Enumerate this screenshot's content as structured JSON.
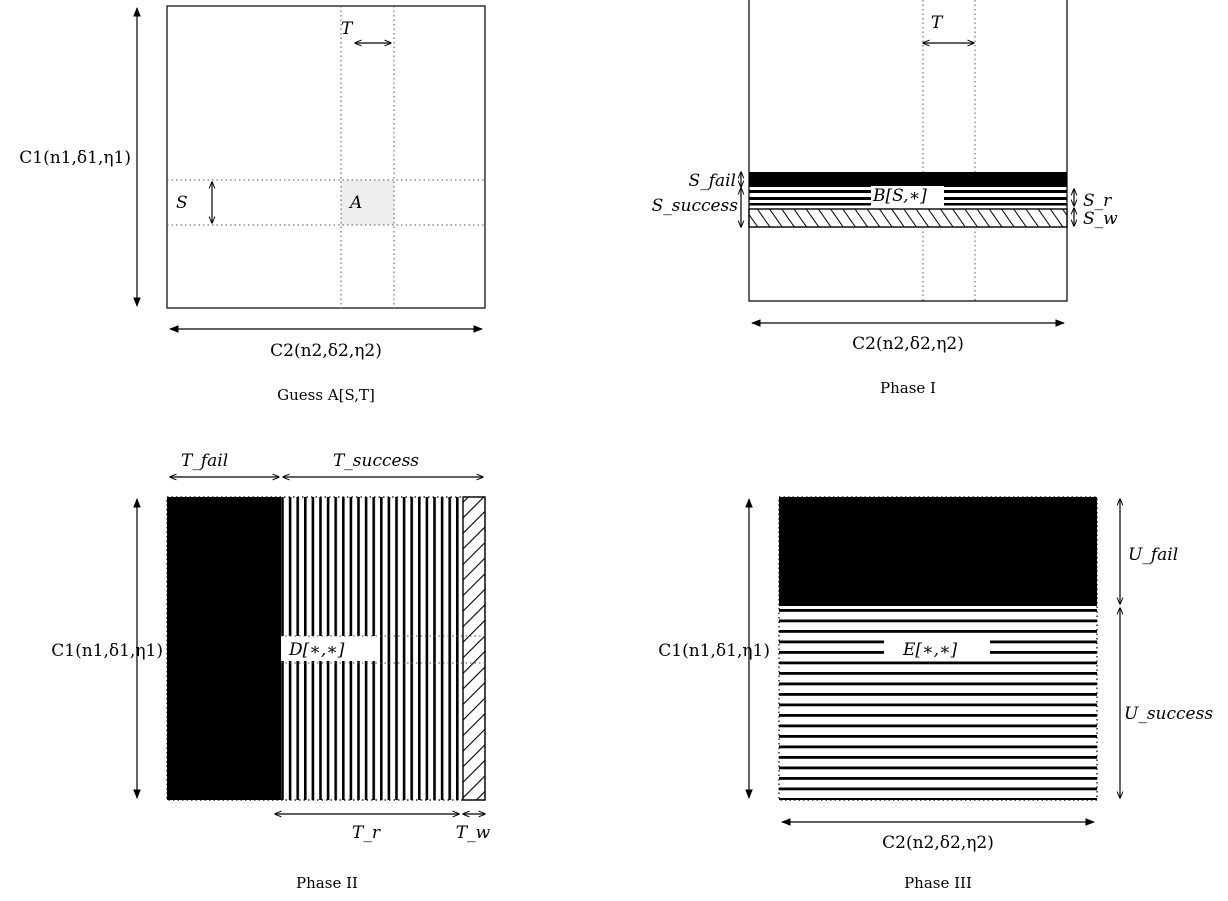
{
  "panels": {
    "guess": {
      "caption": "Guess A[S,T]",
      "left_code": "C1(n1,δ1,η1)",
      "bottom_code": "C2(n2,δ2,η2)",
      "label_T": "T",
      "label_S": "S",
      "label_A": "A"
    },
    "phase1": {
      "caption": "Phase I",
      "label_T": "T",
      "bottom_code": "C2(n2,δ2,η2)",
      "label_S_fail": "S_fail",
      "label_S_success": "S_success",
      "label_B": "B[S,∗]",
      "label_S_r": "S_r",
      "label_S_w": "S_w"
    },
    "phase2": {
      "caption": "Phase II",
      "label_T_fail": "T_fail",
      "label_T_success": "T_success",
      "left_code": "C1(n1,δ1,η1)",
      "label_D": "D[∗,∗]",
      "label_T_r": "T_r",
      "label_T_w": "T_w"
    },
    "phase3": {
      "caption": "Phase III",
      "left_code": "C1(n1,δ1,η1)",
      "label_E": "E[∗,∗]",
      "label_U_fail": "U_fail",
      "label_U_success": "U_success",
      "bottom_code": "C2(n2,δ2,η2)"
    }
  }
}
